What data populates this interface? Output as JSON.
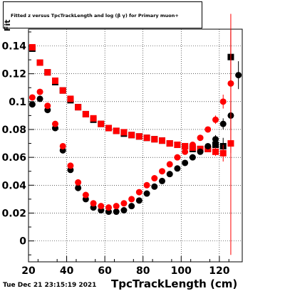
{
  "title": "Fitted  z_fit  versus  TpcTrackLength and log10(β γ) for Primary muon+",
  "title_display": "Fitted  z    versus  TpcTrackLength and log  (β γ) for Primary muon+",
  "ylabel_fragment": "Fit",
  "footer": "Tue Dec 21 23:15:19 2021",
  "chart_data": {
    "type": "scatter",
    "title": "Fitted  z_fit  versus  TpcTrackLength and log10(β γ) for Primary muon+",
    "xlabel": "TpcTrackLength (cm)",
    "ylabel": "Fit",
    "xlim": [
      20,
      132
    ],
    "ylim": [
      -0.015,
      0.152
    ],
    "xticks": [
      20,
      40,
      60,
      80,
      100,
      120
    ],
    "yticks": [
      0,
      0.02,
      0.04,
      0.06,
      0.08,
      0.1,
      0.12,
      0.14
    ],
    "ytick_labels": [
      "0",
      "0.02",
      "0.04",
      "0.06",
      "0.08",
      "0.1",
      "0.12",
      "0.14"
    ],
    "grid": true,
    "series": [
      {
        "color": "#000000",
        "marker": "square",
        "x": [
          22,
          26,
          30,
          34,
          38,
          42,
          46,
          50,
          54,
          58,
          62,
          66,
          70,
          74,
          78,
          82,
          86,
          90,
          94,
          98,
          102,
          106,
          110,
          114,
          118,
          122,
          126
        ],
        "y": [
          0.138,
          0.128,
          0.121,
          0.114,
          0.108,
          0.101,
          0.096,
          0.091,
          0.087,
          0.084,
          0.081,
          0.079,
          0.077,
          0.076,
          0.075,
          0.074,
          0.073,
          0.072,
          0.07,
          0.069,
          0.068,
          0.066,
          0.066,
          0.066,
          0.069,
          0.068,
          0.132
        ],
        "yerr": [
          0.0015,
          0.0015,
          0.0015,
          0.0015,
          0.0015,
          0.0015,
          0.0015,
          0.0015,
          0.0015,
          0.0015,
          0.0015,
          0.0015,
          0.0015,
          0.0015,
          0.0015,
          0.0015,
          0.0015,
          0.0015,
          0.0015,
          0.0015,
          0.0015,
          0.0015,
          0.002,
          0.002,
          0.003,
          0.006,
          0.02
        ]
      },
      {
        "color": "#ff0000",
        "marker": "square",
        "x": [
          22,
          26,
          30,
          34,
          38,
          42,
          46,
          50,
          54,
          58,
          62,
          66,
          70,
          74,
          78,
          82,
          86,
          90,
          94,
          98,
          102,
          106,
          110,
          114,
          118,
          122,
          126
        ],
        "y": [
          0.139,
          0.128,
          0.121,
          0.115,
          0.108,
          0.102,
          0.096,
          0.091,
          0.088,
          0.084,
          0.081,
          0.079,
          0.078,
          0.076,
          0.075,
          0.074,
          0.073,
          0.072,
          0.07,
          0.069,
          0.068,
          0.067,
          0.066,
          0.066,
          0.064,
          0.063,
          0.07
        ],
        "yerr": [
          0.0015,
          0.0015,
          0.0015,
          0.0015,
          0.0015,
          0.0015,
          0.0015,
          0.0015,
          0.0015,
          0.0015,
          0.0015,
          0.0015,
          0.0015,
          0.0015,
          0.0015,
          0.0015,
          0.0015,
          0.0015,
          0.0015,
          0.0015,
          0.0015,
          0.0015,
          0.002,
          0.002,
          0.003,
          0.006,
          0.08
        ]
      },
      {
        "color": "#000000",
        "marker": "circle",
        "x": [
          22,
          26,
          30,
          34,
          38,
          42,
          46,
          50,
          54,
          58,
          62,
          66,
          70,
          74,
          78,
          82,
          86,
          90,
          94,
          98,
          102,
          106,
          110,
          114,
          118,
          122,
          126,
          130
        ],
        "y": [
          0.098,
          0.102,
          0.094,
          0.081,
          0.065,
          0.051,
          0.038,
          0.03,
          0.024,
          0.022,
          0.021,
          0.021,
          0.022,
          0.025,
          0.029,
          0.034,
          0.039,
          0.043,
          0.048,
          0.052,
          0.056,
          0.06,
          0.064,
          0.068,
          0.073,
          0.084,
          0.09,
          0.119
        ],
        "yerr": [
          0.0015,
          0.0015,
          0.0015,
          0.0015,
          0.0015,
          0.0015,
          0.0015,
          0.0015,
          0.0015,
          0.0015,
          0.0015,
          0.0015,
          0.0015,
          0.0015,
          0.0015,
          0.0015,
          0.0015,
          0.0015,
          0.0015,
          0.0015,
          0.0015,
          0.0015,
          0.002,
          0.002,
          0.003,
          0.004,
          0.01,
          0.01
        ]
      },
      {
        "color": "#ff0000",
        "marker": "circle",
        "x": [
          22,
          26,
          30,
          34,
          38,
          42,
          46,
          50,
          54,
          58,
          62,
          66,
          70,
          74,
          78,
          82,
          86,
          90,
          94,
          98,
          102,
          106,
          110,
          114,
          118,
          122,
          126
        ],
        "y": [
          0.103,
          0.107,
          0.097,
          0.084,
          0.068,
          0.054,
          0.042,
          0.033,
          0.027,
          0.025,
          0.024,
          0.025,
          0.027,
          0.03,
          0.035,
          0.04,
          0.045,
          0.05,
          0.055,
          0.06,
          0.064,
          0.069,
          0.074,
          0.08,
          0.087,
          0.1,
          0.113
        ],
        "yerr": [
          0.0015,
          0.0015,
          0.0015,
          0.0015,
          0.0015,
          0.0015,
          0.0015,
          0.0015,
          0.0015,
          0.0015,
          0.0015,
          0.0015,
          0.0015,
          0.0015,
          0.0015,
          0.0015,
          0.0015,
          0.0015,
          0.0015,
          0.0015,
          0.0015,
          0.0015,
          0.002,
          0.002,
          0.003,
          0.005,
          0.05
        ]
      }
    ]
  }
}
